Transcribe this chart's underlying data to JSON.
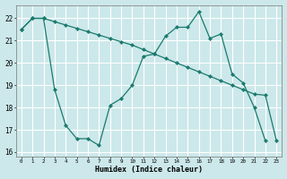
{
  "xlabel": "Humidex (Indice chaleur)",
  "bg_color": "#cce8ea",
  "grid_color": "#ffffff",
  "line_color": "#1a7a6e",
  "xlim": [
    -0.5,
    23.5
  ],
  "ylim": [
    15.8,
    22.6
  ],
  "yticks": [
    16,
    17,
    18,
    19,
    20,
    21,
    22
  ],
  "xticks": [
    0,
    1,
    2,
    3,
    4,
    5,
    6,
    7,
    8,
    9,
    10,
    11,
    12,
    13,
    14,
    15,
    16,
    17,
    18,
    19,
    20,
    21,
    22,
    23
  ],
  "series1_x": [
    0,
    1,
    2,
    3,
    4,
    5,
    6,
    7,
    8,
    9,
    10,
    11,
    12,
    13,
    14,
    15,
    16,
    17,
    18,
    19,
    20,
    21,
    22,
    23
  ],
  "series1_y": [
    21.5,
    22.0,
    22.0,
    21.85,
    21.7,
    21.55,
    21.4,
    21.25,
    21.1,
    20.95,
    20.8,
    20.6,
    20.4,
    20.2,
    20.0,
    19.8,
    19.6,
    19.4,
    19.2,
    19.0,
    18.8,
    18.6,
    18.55,
    16.5
  ],
  "series2_x": [
    0,
    1,
    2,
    3,
    4,
    5,
    6,
    7,
    8,
    9,
    10,
    11,
    12,
    13,
    14,
    15,
    16,
    17,
    18,
    19,
    20,
    21,
    22,
    23
  ],
  "series2_y": [
    21.5,
    22.0,
    22.0,
    18.8,
    17.2,
    16.6,
    16.6,
    16.3,
    18.1,
    18.4,
    19.0,
    20.3,
    20.4,
    21.2,
    21.6,
    21.6,
    22.3,
    21.1,
    21.3,
    19.5,
    19.1,
    18.0,
    16.5,
    null
  ]
}
